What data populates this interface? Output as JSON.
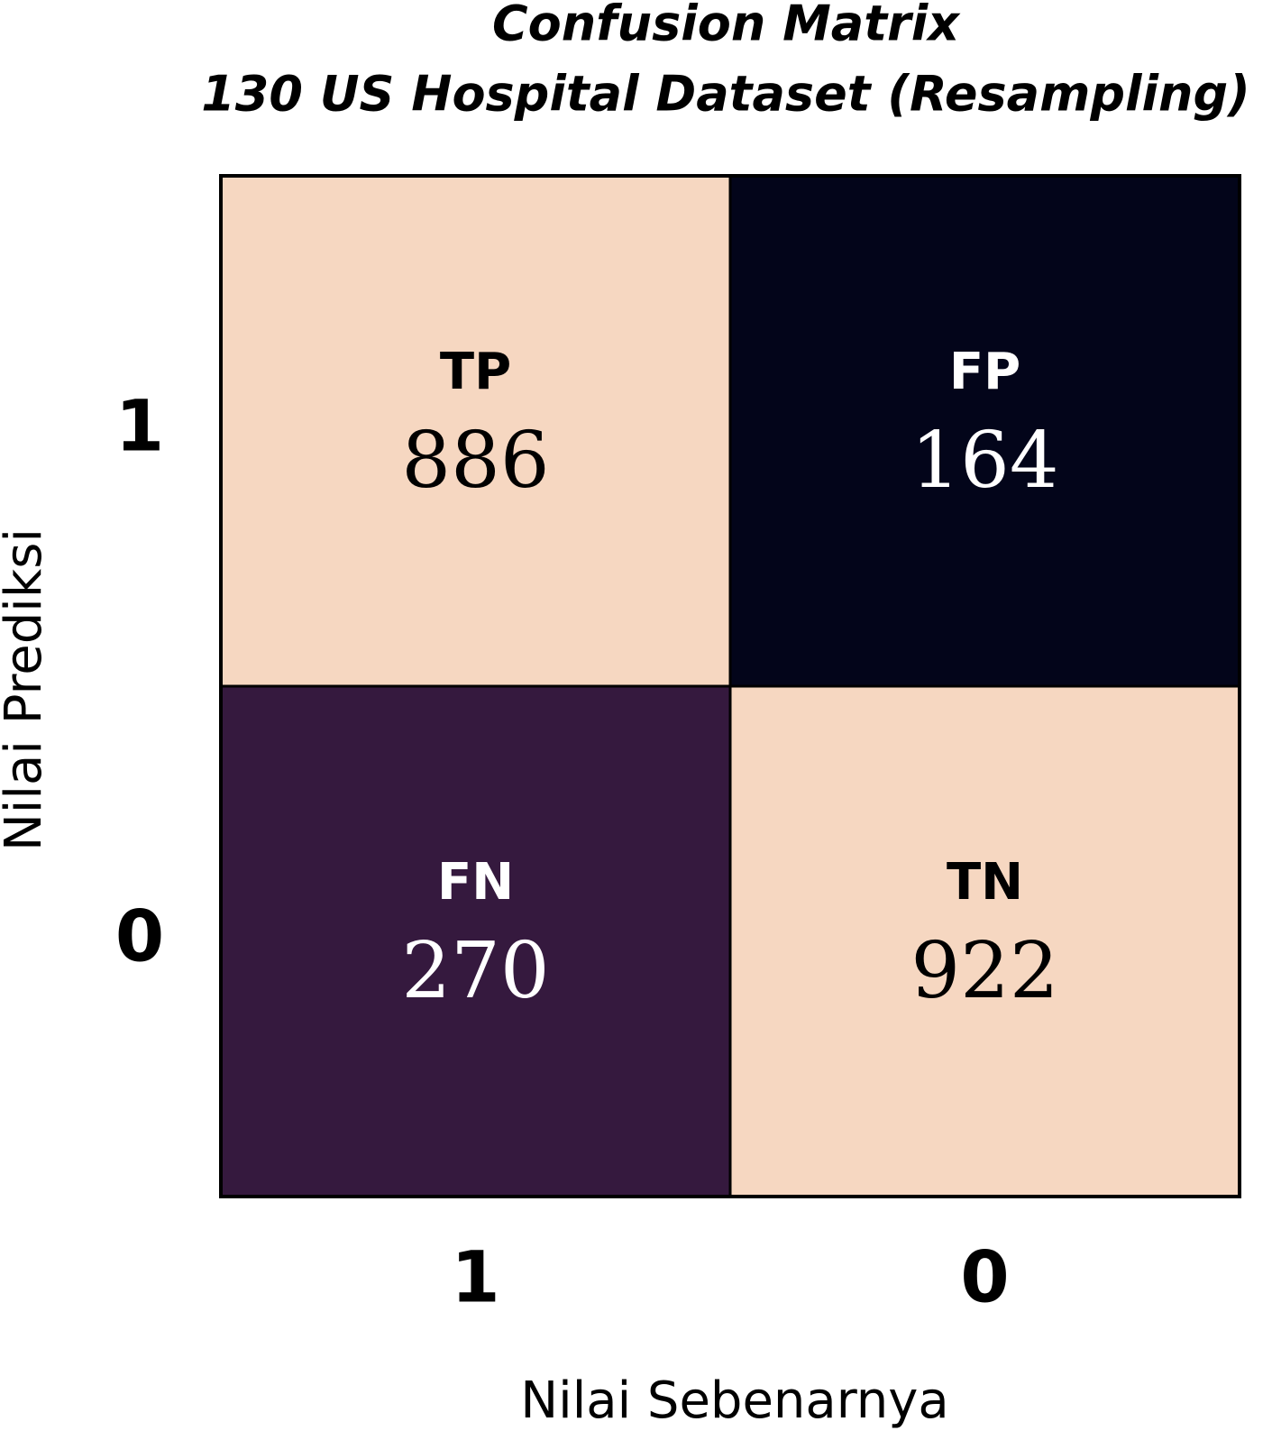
{
  "chart_data": {
    "type": "heatmap",
    "title": "Confusion Matrix",
    "subtitle": "130 US Hospital Dataset (Resampling)",
    "x_label": "Nilai Sebenarnya",
    "y_label": "Nilai Prediksi",
    "x_categories": [
      "1",
      "0"
    ],
    "y_categories": [
      "1",
      "0"
    ],
    "values": [
      [
        886,
        164
      ],
      [
        270,
        922
      ]
    ],
    "cell_labels": [
      [
        "TP",
        "FP"
      ],
      [
        "FN",
        "TN"
      ]
    ],
    "colors": [
      [
        "#f6d7c1",
        "#03051a"
      ],
      [
        "#35193e",
        "#f6d7c1"
      ]
    ]
  }
}
